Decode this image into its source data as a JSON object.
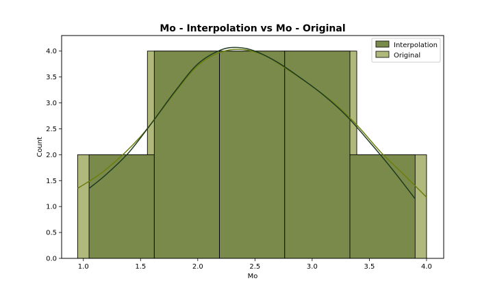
{
  "chart_data": {
    "type": "histogram",
    "title": "Mo - Interpolation vs Mo - Original",
    "xlabel": "Mo",
    "ylabel": "Count",
    "xlim": [
      0.81,
      4.15
    ],
    "ylim": [
      0,
      4.3
    ],
    "xticks": [
      "1.0",
      "1.5",
      "2.0",
      "2.5",
      "3.0",
      "3.5",
      "4.0"
    ],
    "yticks": [
      "0.0",
      "0.5",
      "1.0",
      "1.5",
      "2.0",
      "2.5",
      "3.0",
      "3.5",
      "4.0"
    ],
    "legend": {
      "position": "top-right"
    },
    "series": [
      {
        "name": "Original",
        "color": "#b1b87c",
        "kde_color": "#6b7f0e",
        "bins": [
          {
            "x0": 0.95,
            "x1": 1.56,
            "count": 2
          },
          {
            "x0": 1.56,
            "x1": 2.17,
            "count": 4
          },
          {
            "x0": 2.17,
            "x1": 2.78,
            "count": 4
          },
          {
            "x0": 2.78,
            "x1": 3.39,
            "count": 4
          },
          {
            "x0": 3.39,
            "x1": 4.0,
            "count": 2
          }
        ],
        "kde": [
          [
            0.95,
            1.35
          ],
          [
            1.2,
            1.72
          ],
          [
            1.5,
            2.35
          ],
          [
            1.8,
            3.2
          ],
          [
            2.0,
            3.72
          ],
          [
            2.2,
            3.98
          ],
          [
            2.4,
            4.03
          ],
          [
            2.6,
            3.9
          ],
          [
            2.8,
            3.62
          ],
          [
            3.0,
            3.32
          ],
          [
            3.2,
            2.98
          ],
          [
            3.4,
            2.55
          ],
          [
            3.6,
            2.05
          ],
          [
            3.8,
            1.62
          ],
          [
            4.0,
            1.18
          ]
        ]
      },
      {
        "name": "Interpolation",
        "color": "#7a8a4a",
        "kde_color": "#1e3a20",
        "bins": [
          {
            "x0": 1.05,
            "x1": 1.62,
            "count": 2
          },
          {
            "x0": 1.62,
            "x1": 2.19,
            "count": 4
          },
          {
            "x0": 2.19,
            "x1": 2.76,
            "count": 4
          },
          {
            "x0": 2.76,
            "x1": 3.33,
            "count": 4
          },
          {
            "x0": 3.33,
            "x1": 3.9,
            "count": 2
          }
        ],
        "kde": [
          [
            1.05,
            1.35
          ],
          [
            1.2,
            1.62
          ],
          [
            1.4,
            2.05
          ],
          [
            1.6,
            2.62
          ],
          [
            1.8,
            3.22
          ],
          [
            2.0,
            3.75
          ],
          [
            2.2,
            4.02
          ],
          [
            2.35,
            4.07
          ],
          [
            2.5,
            4.0
          ],
          [
            2.7,
            3.78
          ],
          [
            2.9,
            3.48
          ],
          [
            3.1,
            3.15
          ],
          [
            3.3,
            2.75
          ],
          [
            3.5,
            2.25
          ],
          [
            3.7,
            1.72
          ],
          [
            3.9,
            1.15
          ]
        ]
      }
    ]
  }
}
